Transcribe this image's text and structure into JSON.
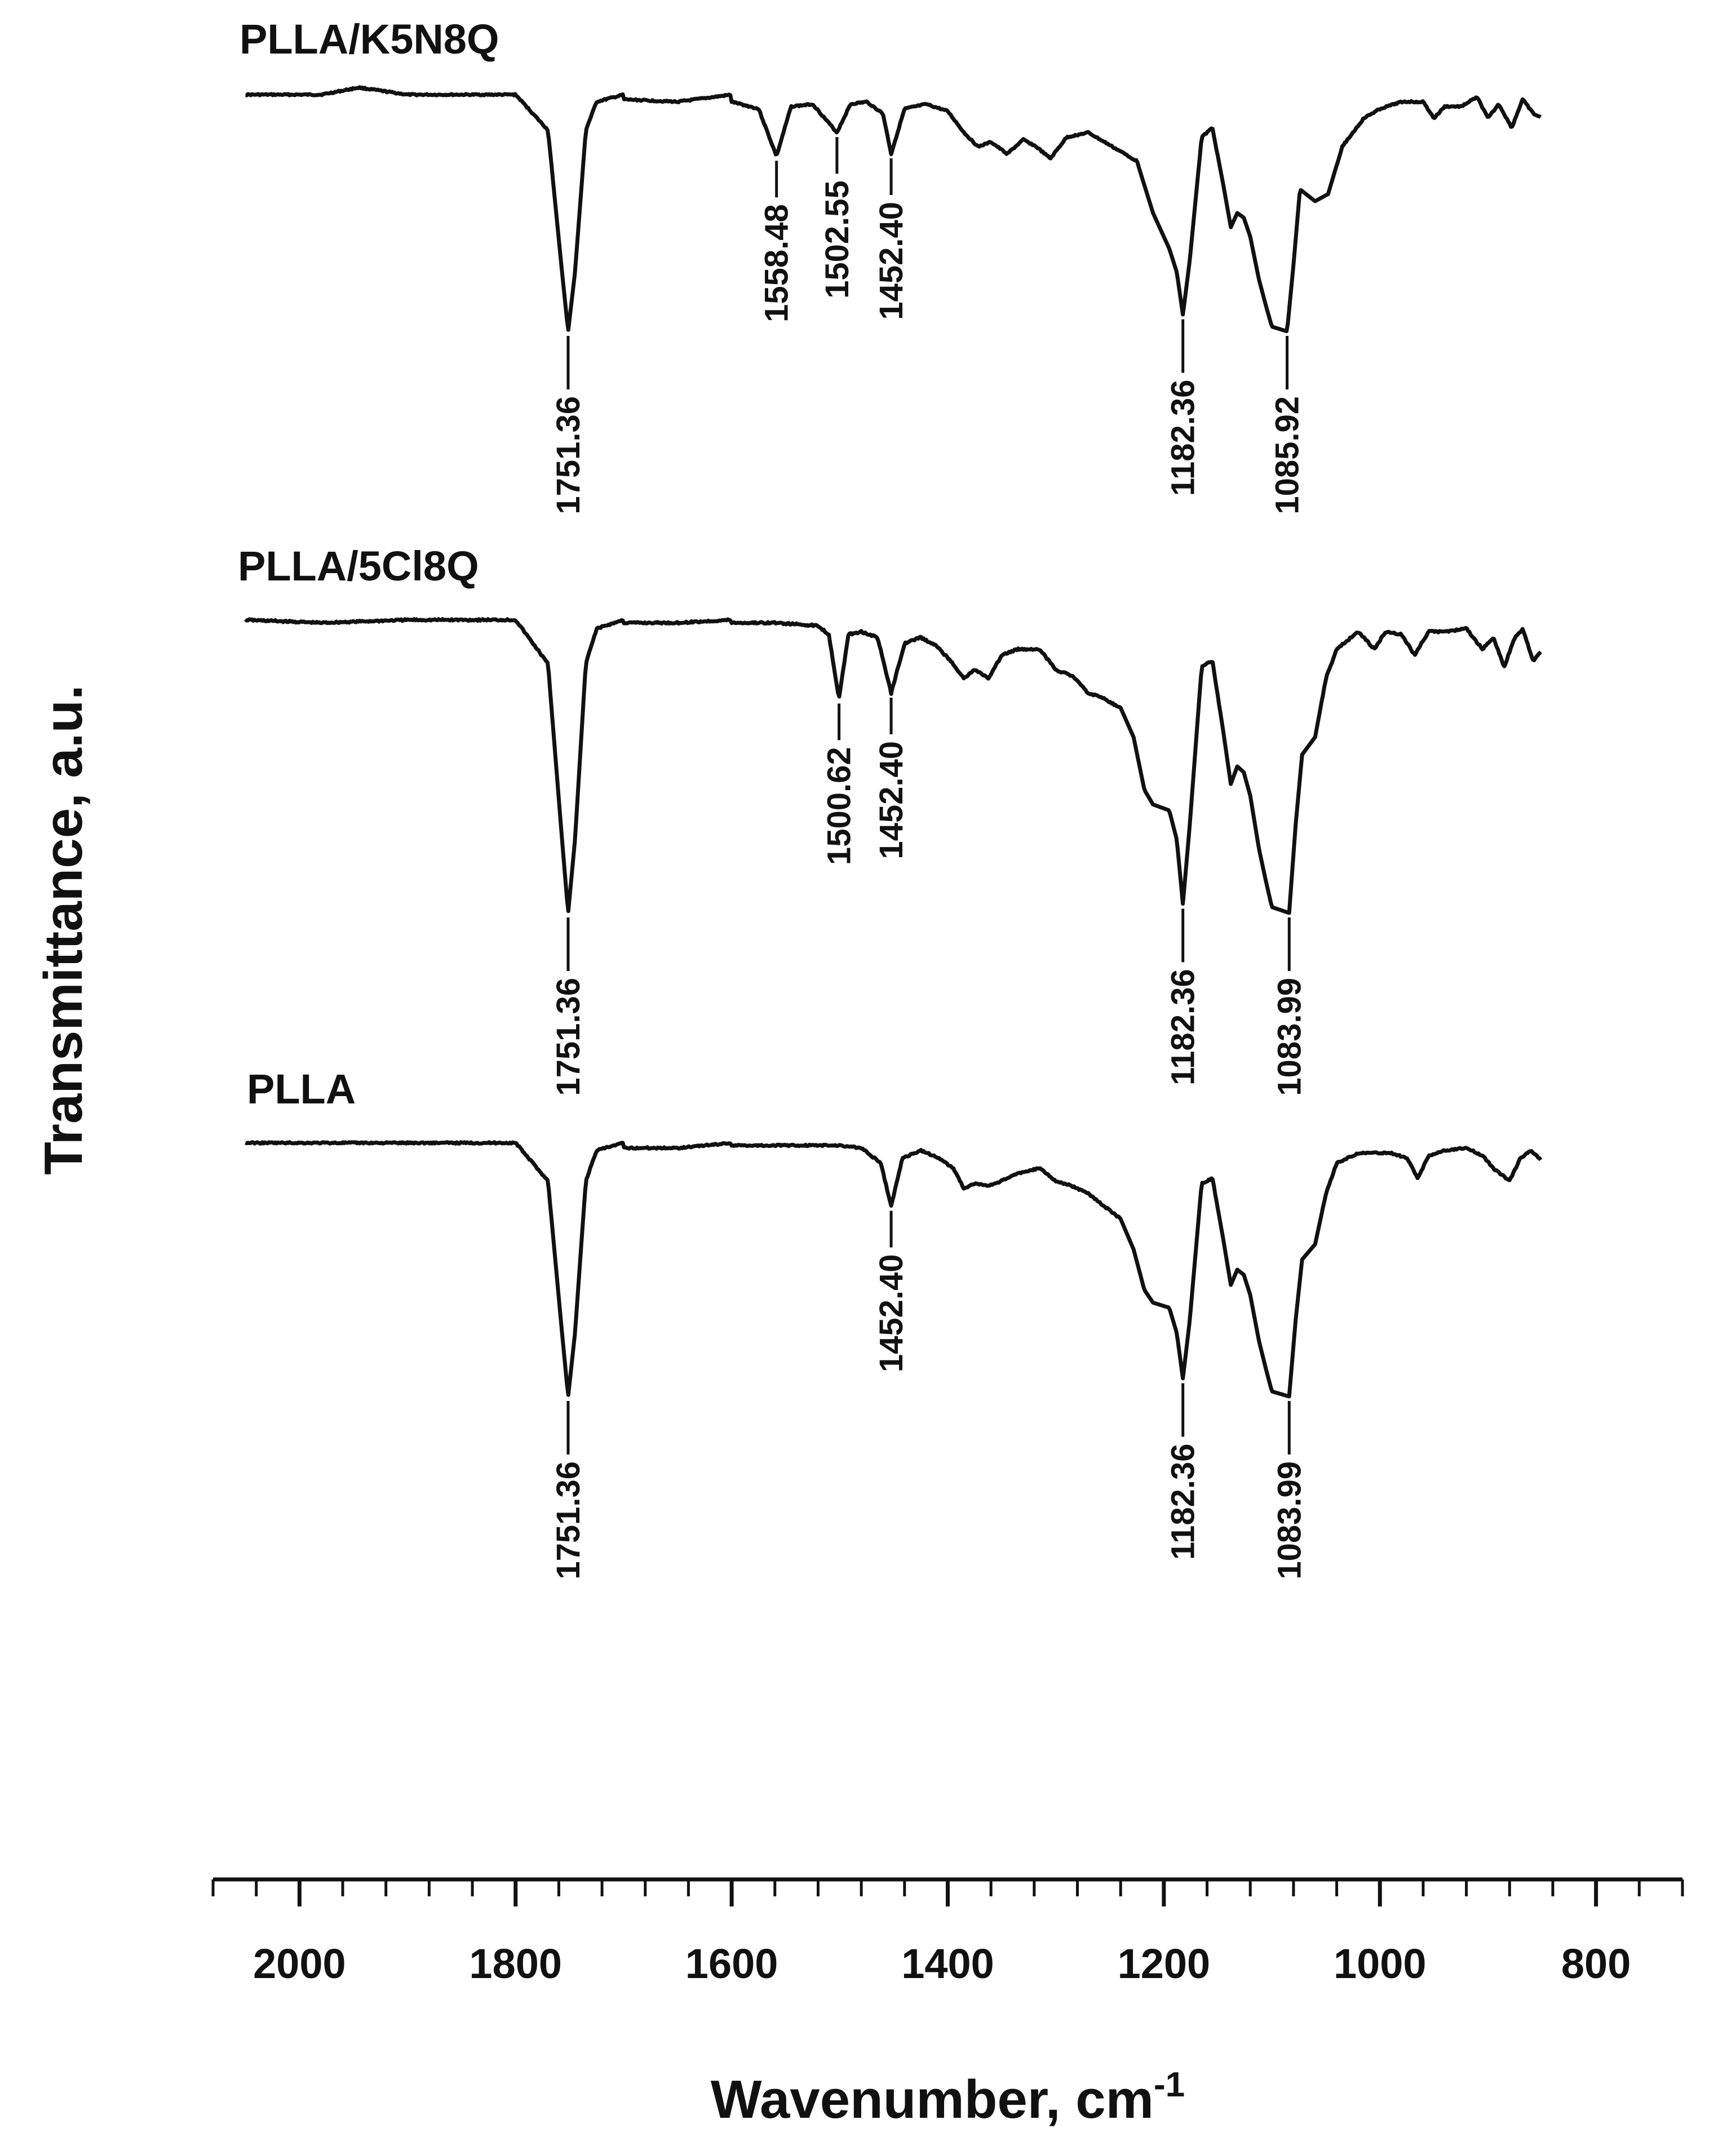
{
  "chart_data": {
    "type": "line",
    "title": "",
    "xlabel": "Wavenumber, cm",
    "xlabel_superscript": "-1",
    "ylabel": "Transmittance, a.u.",
    "xlim": [
      2080,
      720
    ],
    "x_reversed": true,
    "x_ticks": [
      2000,
      1800,
      1600,
      1400,
      1200,
      1000,
      800
    ],
    "x_tick_labels": [
      "2000",
      "1800",
      "1600",
      "1400",
      "1200",
      "1000",
      "800"
    ],
    "grid": false,
    "legend": "none",
    "line_color": "#111111",
    "y_note": "arbitrary units; curves vertically offset (0 = baseline, 1 = deepest band of each curve)",
    "series": [
      {
        "name": "PLLA/K5N8Q",
        "x_range": [
          2050,
          850
        ],
        "points": [
          [
            2050,
            0.0
          ],
          [
            1980,
            0.0
          ],
          [
            1945,
            -0.03
          ],
          [
            1900,
            0.0
          ],
          [
            1800,
            0.0
          ],
          [
            1700,
            0.0
          ],
          [
            1600,
            0.0
          ],
          [
            1770,
            0.15
          ],
          [
            1757,
            0.75
          ],
          [
            1751.36,
            1.0
          ],
          [
            1745,
            0.75
          ],
          [
            1735,
            0.15
          ],
          [
            1725,
            0.03
          ],
          [
            1700,
            0.02
          ],
          [
            1650,
            0.03
          ],
          [
            1600,
            0.03
          ],
          [
            1575,
            0.06
          ],
          [
            1558.48,
            0.26
          ],
          [
            1545,
            0.05
          ],
          [
            1525,
            0.04
          ],
          [
            1502.55,
            0.16
          ],
          [
            1490,
            0.04
          ],
          [
            1475,
            0.03
          ],
          [
            1460,
            0.08
          ],
          [
            1452.4,
            0.25
          ],
          [
            1440,
            0.06
          ],
          [
            1420,
            0.04
          ],
          [
            1400,
            0.07
          ],
          [
            1385,
            0.16
          ],
          [
            1372,
            0.22
          ],
          [
            1360,
            0.2
          ],
          [
            1345,
            0.25
          ],
          [
            1330,
            0.19
          ],
          [
            1318,
            0.22
          ],
          [
            1305,
            0.27
          ],
          [
            1290,
            0.18
          ],
          [
            1270,
            0.16
          ],
          [
            1255,
            0.2
          ],
          [
            1225,
            0.28
          ],
          [
            1210,
            0.5
          ],
          [
            1195,
            0.65
          ],
          [
            1188,
            0.75
          ],
          [
            1182.36,
            0.93
          ],
          [
            1176,
            0.7
          ],
          [
            1165,
            0.18
          ],
          [
            1155,
            0.14
          ],
          [
            1145,
            0.38
          ],
          [
            1138,
            0.56
          ],
          [
            1132,
            0.5
          ],
          [
            1126,
            0.52
          ],
          [
            1120,
            0.6
          ],
          [
            1112,
            0.78
          ],
          [
            1105,
            0.9
          ],
          [
            1100,
            0.98
          ],
          [
            1085.92,
            1.0
          ],
          [
            1080,
            0.72
          ],
          [
            1074,
            0.4
          ],
          [
            1060,
            0.45
          ],
          [
            1048,
            0.42
          ],
          [
            1035,
            0.22
          ],
          [
            1015,
            0.1
          ],
          [
            1000,
            0.06
          ],
          [
            980,
            0.03
          ],
          [
            960,
            0.03
          ],
          [
            950,
            0.1
          ],
          [
            940,
            0.05
          ],
          [
            925,
            0.05
          ],
          [
            910,
            0.01
          ],
          [
            900,
            0.1
          ],
          [
            890,
            0.04
          ],
          [
            878,
            0.14
          ],
          [
            868,
            0.02
          ],
          [
            858,
            0.08
          ],
          [
            850,
            0.1
          ]
        ]
      },
      {
        "name": "PLLA/5Cl8Q",
        "x_range": [
          2050,
          850
        ],
        "points": [
          [
            2050,
            0.0
          ],
          [
            1980,
            0.01
          ],
          [
            1900,
            0.0
          ],
          [
            1800,
            0.0
          ],
          [
            1700,
            0.0
          ],
          [
            1600,
            0.0
          ],
          [
            1770,
            0.15
          ],
          [
            1757,
            0.75
          ],
          [
            1751.36,
            1.0
          ],
          [
            1745,
            0.75
          ],
          [
            1735,
            0.15
          ],
          [
            1725,
            0.03
          ],
          [
            1700,
            0.01
          ],
          [
            1650,
            0.01
          ],
          [
            1600,
            0.01
          ],
          [
            1560,
            0.01
          ],
          [
            1520,
            0.02
          ],
          [
            1510,
            0.05
          ],
          [
            1500.62,
            0.27
          ],
          [
            1492,
            0.05
          ],
          [
            1480,
            0.04
          ],
          [
            1465,
            0.06
          ],
          [
            1452.4,
            0.25
          ],
          [
            1440,
            0.08
          ],
          [
            1425,
            0.06
          ],
          [
            1410,
            0.09
          ],
          [
            1395,
            0.15
          ],
          [
            1385,
            0.2
          ],
          [
            1375,
            0.17
          ],
          [
            1362,
            0.2
          ],
          [
            1350,
            0.12
          ],
          [
            1335,
            0.1
          ],
          [
            1315,
            0.1
          ],
          [
            1300,
            0.17
          ],
          [
            1285,
            0.19
          ],
          [
            1270,
            0.25
          ],
          [
            1260,
            0.26
          ],
          [
            1240,
            0.3
          ],
          [
            1228,
            0.4
          ],
          [
            1218,
            0.58
          ],
          [
            1210,
            0.63
          ],
          [
            1195,
            0.65
          ],
          [
            1188,
            0.75
          ],
          [
            1182.36,
            0.97
          ],
          [
            1176,
            0.7
          ],
          [
            1165,
            0.16
          ],
          [
            1155,
            0.14
          ],
          [
            1145,
            0.38
          ],
          [
            1138,
            0.56
          ],
          [
            1132,
            0.5
          ],
          [
            1126,
            0.52
          ],
          [
            1120,
            0.6
          ],
          [
            1112,
            0.78
          ],
          [
            1105,
            0.9
          ],
          [
            1100,
            0.98
          ],
          [
            1083.99,
            1.0
          ],
          [
            1078,
            0.7
          ],
          [
            1072,
            0.46
          ],
          [
            1060,
            0.4
          ],
          [
            1050,
            0.2
          ],
          [
            1040,
            0.1
          ],
          [
            1020,
            0.04
          ],
          [
            1005,
            0.1
          ],
          [
            995,
            0.04
          ],
          [
            980,
            0.05
          ],
          [
            968,
            0.12
          ],
          [
            955,
            0.04
          ],
          [
            940,
            0.04
          ],
          [
            920,
            0.03
          ],
          [
            905,
            0.1
          ],
          [
            895,
            0.06
          ],
          [
            885,
            0.16
          ],
          [
            875,
            0.06
          ],
          [
            868,
            0.03
          ],
          [
            858,
            0.14
          ],
          [
            850,
            0.1
          ]
        ]
      },
      {
        "name": "PLLA",
        "x_range": [
          2050,
          850
        ],
        "points": [
          [
            2050,
            0.0
          ],
          [
            2000,
            0.0
          ],
          [
            1900,
            0.0
          ],
          [
            1800,
            0.0
          ],
          [
            1700,
            0.0
          ],
          [
            1600,
            0.0
          ],
          [
            1770,
            0.15
          ],
          [
            1757,
            0.75
          ],
          [
            1751.36,
            1.0
          ],
          [
            1745,
            0.75
          ],
          [
            1735,
            0.15
          ],
          [
            1725,
            0.03
          ],
          [
            1700,
            0.02
          ],
          [
            1650,
            0.02
          ],
          [
            1600,
            0.01
          ],
          [
            1560,
            0.01
          ],
          [
            1520,
            0.01
          ],
          [
            1500,
            0.01
          ],
          [
            1480,
            0.02
          ],
          [
            1462,
            0.08
          ],
          [
            1452.4,
            0.25
          ],
          [
            1442,
            0.06
          ],
          [
            1425,
            0.03
          ],
          [
            1408,
            0.06
          ],
          [
            1395,
            0.1
          ],
          [
            1385,
            0.18
          ],
          [
            1375,
            0.16
          ],
          [
            1362,
            0.17
          ],
          [
            1350,
            0.15
          ],
          [
            1335,
            0.12
          ],
          [
            1315,
            0.1
          ],
          [
            1300,
            0.15
          ],
          [
            1285,
            0.17
          ],
          [
            1270,
            0.2
          ],
          [
            1255,
            0.25
          ],
          [
            1240,
            0.3
          ],
          [
            1228,
            0.42
          ],
          [
            1218,
            0.58
          ],
          [
            1210,
            0.63
          ],
          [
            1195,
            0.65
          ],
          [
            1188,
            0.75
          ],
          [
            1182.36,
            0.93
          ],
          [
            1176,
            0.7
          ],
          [
            1165,
            0.16
          ],
          [
            1155,
            0.14
          ],
          [
            1145,
            0.38
          ],
          [
            1138,
            0.56
          ],
          [
            1132,
            0.5
          ],
          [
            1126,
            0.52
          ],
          [
            1120,
            0.6
          ],
          [
            1112,
            0.78
          ],
          [
            1105,
            0.9
          ],
          [
            1100,
            0.98
          ],
          [
            1083.99,
            1.0
          ],
          [
            1078,
            0.7
          ],
          [
            1072,
            0.46
          ],
          [
            1060,
            0.4
          ],
          [
            1050,
            0.2
          ],
          [
            1040,
            0.08
          ],
          [
            1020,
            0.04
          ],
          [
            1005,
            0.04
          ],
          [
            990,
            0.04
          ],
          [
            975,
            0.06
          ],
          [
            965,
            0.14
          ],
          [
            955,
            0.05
          ],
          [
            940,
            0.03
          ],
          [
            920,
            0.02
          ],
          [
            905,
            0.05
          ],
          [
            895,
            0.1
          ],
          [
            880,
            0.15
          ],
          [
            870,
            0.06
          ],
          [
            860,
            0.03
          ],
          [
            850,
            0.07
          ]
        ]
      }
    ],
    "annotations": [
      {
        "series": "PLLA/K5N8Q",
        "x": 1751.36,
        "label": "1751.36"
      },
      {
        "series": "PLLA/K5N8Q",
        "x": 1558.48,
        "label": "1558.48"
      },
      {
        "series": "PLLA/K5N8Q",
        "x": 1502.55,
        "label": "1502.55"
      },
      {
        "series": "PLLA/K5N8Q",
        "x": 1452.4,
        "label": "1452.40"
      },
      {
        "series": "PLLA/K5N8Q",
        "x": 1182.36,
        "label": "1182.36"
      },
      {
        "series": "PLLA/K5N8Q",
        "x": 1085.92,
        "label": "1085.92"
      },
      {
        "series": "PLLA/5Cl8Q",
        "x": 1751.36,
        "label": "1751.36"
      },
      {
        "series": "PLLA/5Cl8Q",
        "x": 1500.62,
        "label": "1500.62"
      },
      {
        "series": "PLLA/5Cl8Q",
        "x": 1452.4,
        "label": "1452.40"
      },
      {
        "series": "PLLA/5Cl8Q",
        "x": 1182.36,
        "label": "1182.36"
      },
      {
        "series": "PLLA/5Cl8Q",
        "x": 1083.99,
        "label": "1083.99"
      },
      {
        "series": "PLLA",
        "x": 1751.36,
        "label": "1751.36"
      },
      {
        "series": "PLLA",
        "x": 1452.4,
        "label": "1452.40"
      },
      {
        "series": "PLLA",
        "x": 1182.36,
        "label": "1182.36"
      },
      {
        "series": "PLLA",
        "x": 1083.99,
        "label": "1083.99"
      }
    ]
  }
}
